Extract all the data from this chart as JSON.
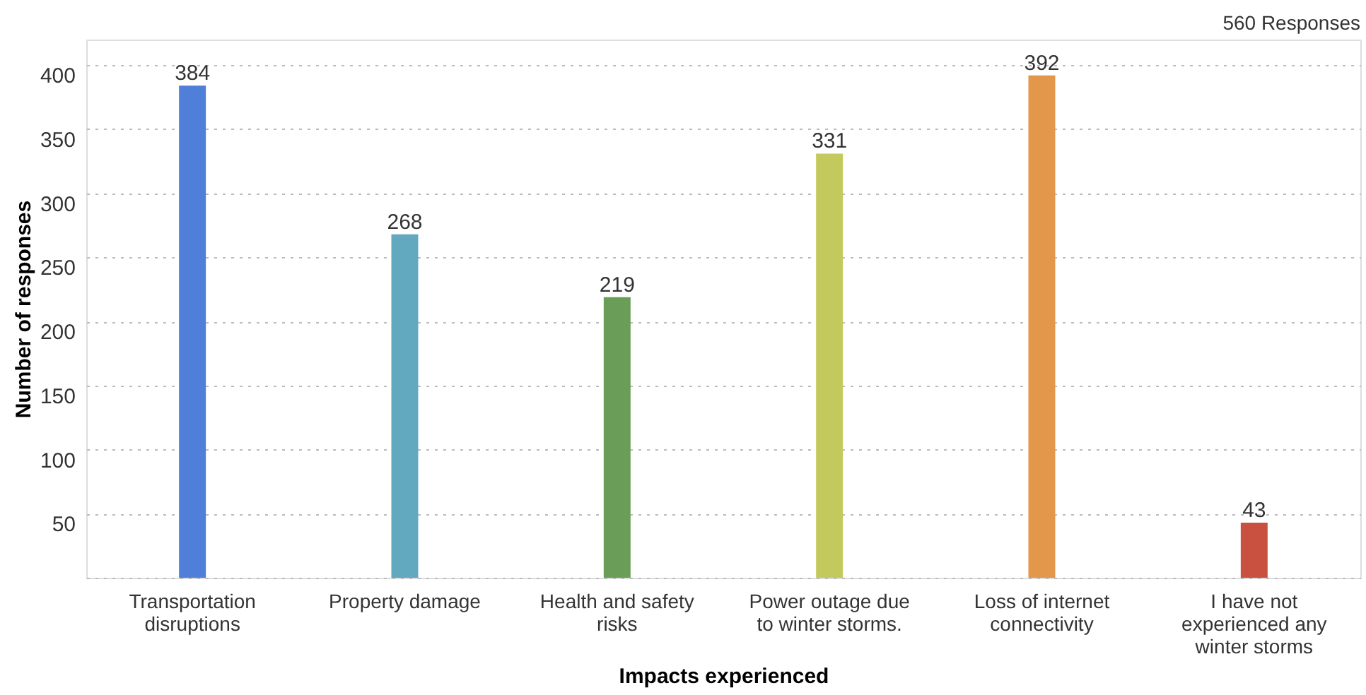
{
  "chart_data": {
    "type": "bar",
    "xlabel": "Impacts experienced",
    "ylabel": "Number of responses",
    "annotations": [
      "560 Responses"
    ],
    "categories": [
      "Transportation disruptions",
      "Property damage",
      "Health and safety risks",
      "Power outage due to winter storms.",
      "Loss of internet connectivity",
      "I have not experienced any winter storms"
    ],
    "values": [
      384,
      268,
      219,
      331,
      392,
      43
    ],
    "colors": [
      "#4f7fd8",
      "#62a9bf",
      "#6a9e58",
      "#c4c95e",
      "#e3974a",
      "#c8523f"
    ],
    "ylim": [
      0,
      420
    ],
    "yticks": [
      {
        "value": 0,
        "label": null
      },
      50,
      100,
      150,
      200,
      250,
      300,
      350,
      400
    ],
    "grid": "y",
    "data_labels": true
  }
}
